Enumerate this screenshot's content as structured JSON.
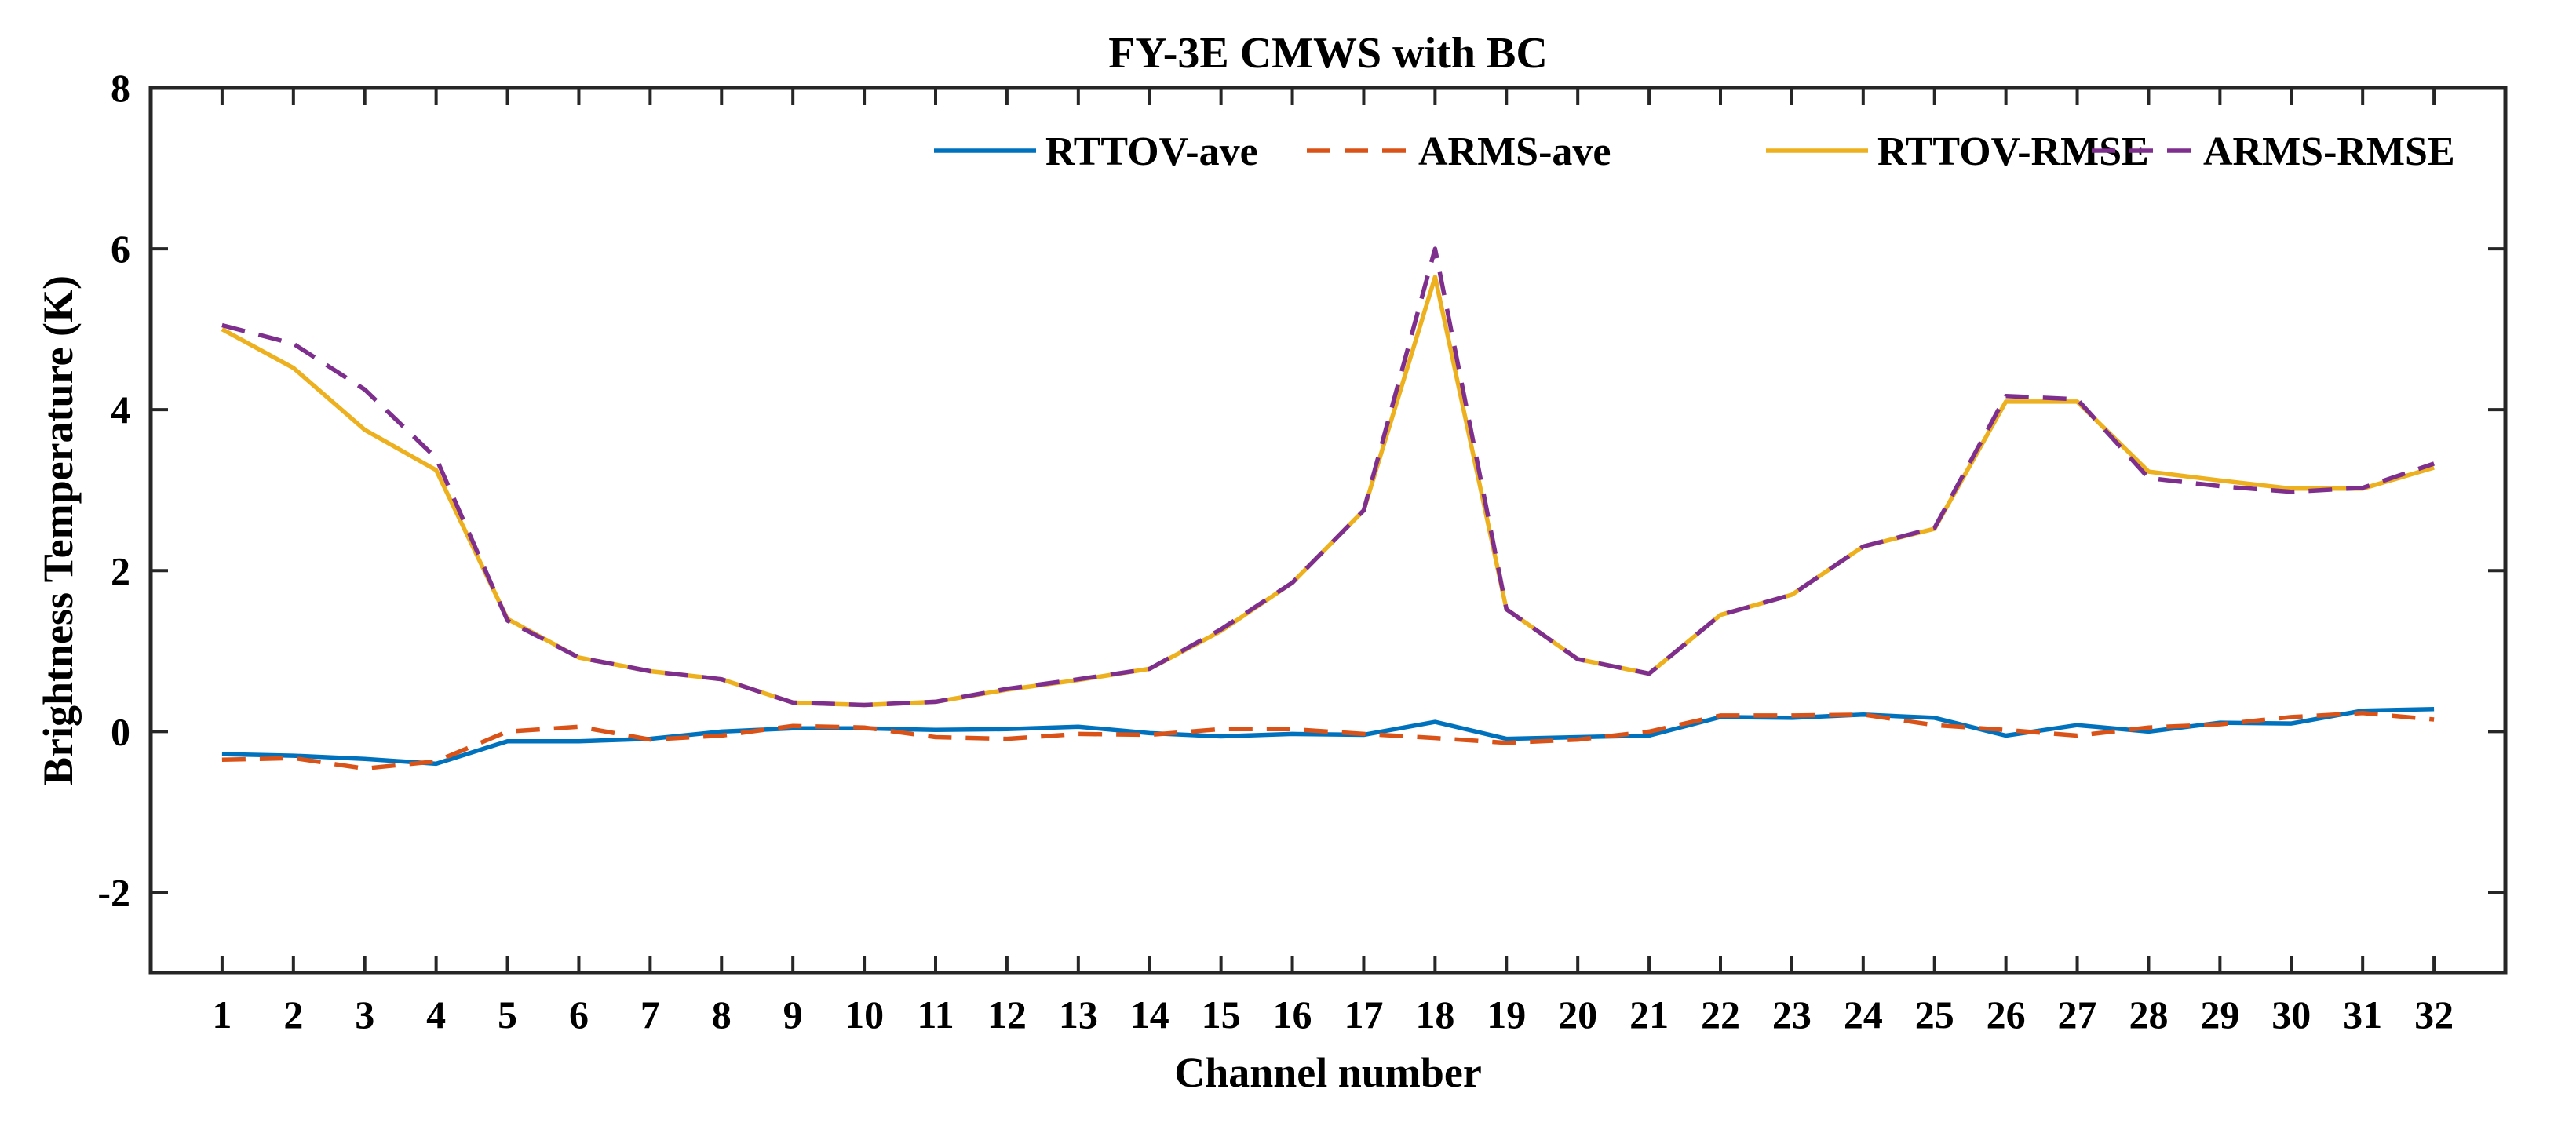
{
  "chart_data": {
    "type": "line",
    "title": "FY-3E CMWS with BC",
    "xlabel": "Channel number",
    "ylabel": "Brightness Temperature (K)",
    "xlim": [
      0,
      33
    ],
    "ylim": [
      -3,
      8
    ],
    "x": [
      1,
      2,
      3,
      4,
      5,
      6,
      7,
      8,
      9,
      10,
      11,
      12,
      13,
      14,
      15,
      16,
      17,
      18,
      19,
      20,
      21,
      22,
      23,
      24,
      25,
      26,
      27,
      28,
      29,
      30,
      31,
      32
    ],
    "x_tick_labels": [
      "1",
      "2",
      "3",
      "4",
      "5",
      "6",
      "7",
      "8",
      "9",
      "10",
      "11",
      "12",
      "13",
      "14",
      "15",
      "16",
      "17",
      "18",
      "19",
      "20",
      "21",
      "22",
      "23",
      "24",
      "25",
      "26",
      "27",
      "28",
      "29",
      "30",
      "31",
      "32"
    ],
    "y_ticks": [
      -2,
      0,
      2,
      4,
      6,
      8
    ],
    "y_tick_labels": [
      "-2",
      "0",
      "2",
      "4",
      "6",
      "8"
    ],
    "grid": false,
    "legend_position": "top-right",
    "series": [
      {
        "name": "RTTOV-ave",
        "color": "#0072BD",
        "dash": "solid",
        "values": [
          -0.28,
          -0.3,
          -0.34,
          -0.4,
          -0.12,
          -0.12,
          -0.09,
          0.0,
          0.04,
          0.04,
          0.02,
          0.03,
          0.06,
          -0.02,
          -0.06,
          -0.03,
          -0.04,
          0.12,
          -0.09,
          -0.07,
          -0.05,
          0.18,
          0.17,
          0.21,
          0.17,
          -0.05,
          0.08,
          0.0,
          0.11,
          0.1,
          0.26,
          0.28
        ]
      },
      {
        "name": "ARMS-ave",
        "color": "#D95319",
        "dash": "dashed",
        "values": [
          -0.35,
          -0.33,
          -0.46,
          -0.37,
          0.0,
          0.06,
          -0.1,
          -0.05,
          0.07,
          0.05,
          -0.07,
          -0.09,
          -0.03,
          -0.04,
          0.03,
          0.03,
          -0.03,
          -0.08,
          -0.14,
          -0.1,
          0.0,
          0.2,
          0.2,
          0.21,
          0.08,
          0.02,
          -0.05,
          0.05,
          0.09,
          0.18,
          0.23,
          0.15
        ]
      },
      {
        "name": "RTTOV-RMSE",
        "color": "#EDB120",
        "dash": "solid",
        "values": [
          5.0,
          4.52,
          3.75,
          3.25,
          1.4,
          0.92,
          0.75,
          0.65,
          0.36,
          0.33,
          0.37,
          0.52,
          0.64,
          0.78,
          1.25,
          1.85,
          2.75,
          5.65,
          1.52,
          0.9,
          0.72,
          1.45,
          1.7,
          2.3,
          2.52,
          4.1,
          4.1,
          3.23,
          3.12,
          3.02,
          3.02,
          3.28
        ]
      },
      {
        "name": "ARMS-RMSE",
        "color": "#7E2F8E",
        "dash": "dashed",
        "values": [
          5.05,
          4.82,
          4.25,
          3.4,
          1.38,
          0.92,
          0.75,
          0.65,
          0.36,
          0.33,
          0.37,
          0.53,
          0.65,
          0.78,
          1.27,
          1.85,
          2.75,
          6.0,
          1.52,
          0.9,
          0.72,
          1.45,
          1.7,
          2.3,
          2.53,
          4.17,
          4.13,
          3.15,
          3.05,
          2.98,
          3.03,
          3.33
        ]
      }
    ]
  }
}
